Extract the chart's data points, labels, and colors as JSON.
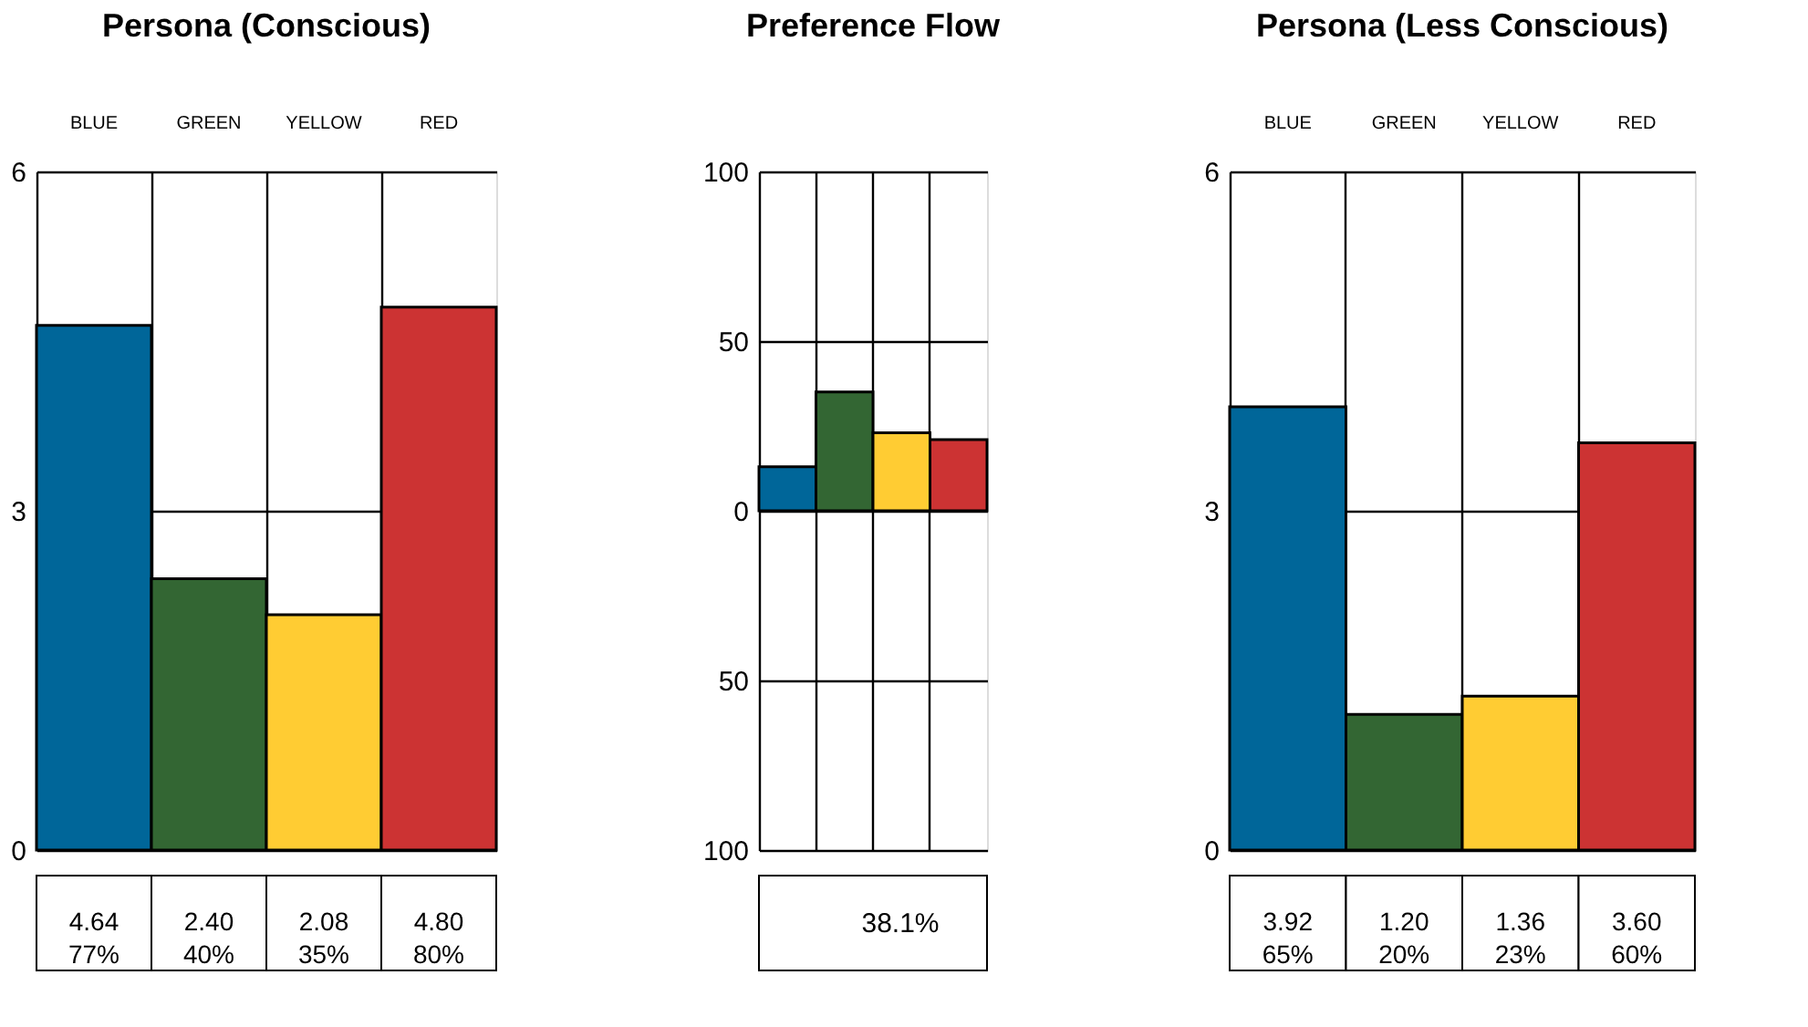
{
  "chart_data": [
    {
      "type": "bar",
      "title": "Persona (Conscious)",
      "categories": [
        "BLUE",
        "GREEN",
        "YELLOW",
        "RED"
      ],
      "values": [
        4.64,
        2.4,
        2.08,
        4.8
      ],
      "colors": [
        "#006699",
        "#336633",
        "#ffcc33",
        "#cc3333"
      ],
      "ylim": [
        0,
        6
      ],
      "yticks": [
        0,
        3,
        6
      ],
      "grid": true,
      "value_labels": [
        "4.64\n77%",
        "2.40\n40%",
        "2.08\n35%",
        "4.80\n80%"
      ]
    },
    {
      "type": "bar",
      "title": "Preference Flow",
      "categories": [
        null,
        null,
        null,
        null
      ],
      "values": [
        13,
        35,
        23,
        21
      ],
      "colors": [
        "#006699",
        "#336633",
        "#ffcc33",
        "#cc3333"
      ],
      "ylim": [
        -100,
        100
      ],
      "yticks": [
        {
          "value": -100,
          "label": "100"
        },
        {
          "value": -50,
          "label": "50"
        },
        0,
        50,
        100
      ],
      "grid": true,
      "tick_labels": "y",
      "annotations": [
        "38.1%"
      ]
    },
    {
      "type": "bar",
      "title": "Persona (Less Conscious)",
      "categories": [
        "BLUE",
        "GREEN",
        "YELLOW",
        "RED"
      ],
      "values": [
        3.92,
        1.2,
        1.36,
        3.6
      ],
      "colors": [
        "#006699",
        "#336633",
        "#ffcc33",
        "#cc3333"
      ],
      "ylim": [
        0,
        6
      ],
      "yticks": [
        0,
        3,
        6
      ],
      "grid": true,
      "value_labels": [
        "3.92\n65%",
        "1.20\n20%",
        "1.36\n23%",
        "3.60\n60%"
      ]
    }
  ]
}
